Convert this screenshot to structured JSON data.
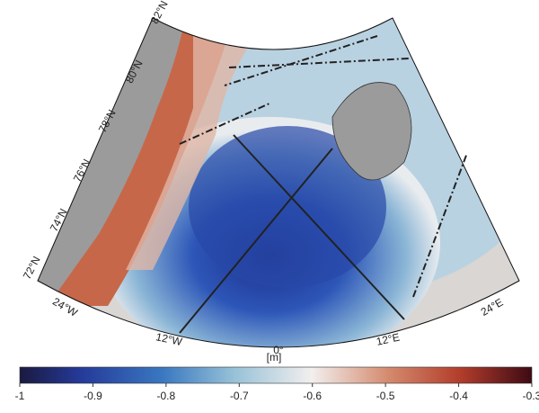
{
  "map": {
    "lat_labels": [
      "82°N",
      "80°N",
      "78°N",
      "76°N",
      "74°N",
      "72°N"
    ],
    "lon_labels": [
      "24°W",
      "12°W",
      "0°",
      "12°E",
      "24°E"
    ]
  },
  "colorbar": {
    "label": "[m]",
    "lim": [
      -1,
      -0.3
    ],
    "ticks": [
      -1,
      -0.9,
      -0.8,
      -0.7,
      -0.6,
      -0.5,
      -0.4,
      -0.3
    ]
  }
}
